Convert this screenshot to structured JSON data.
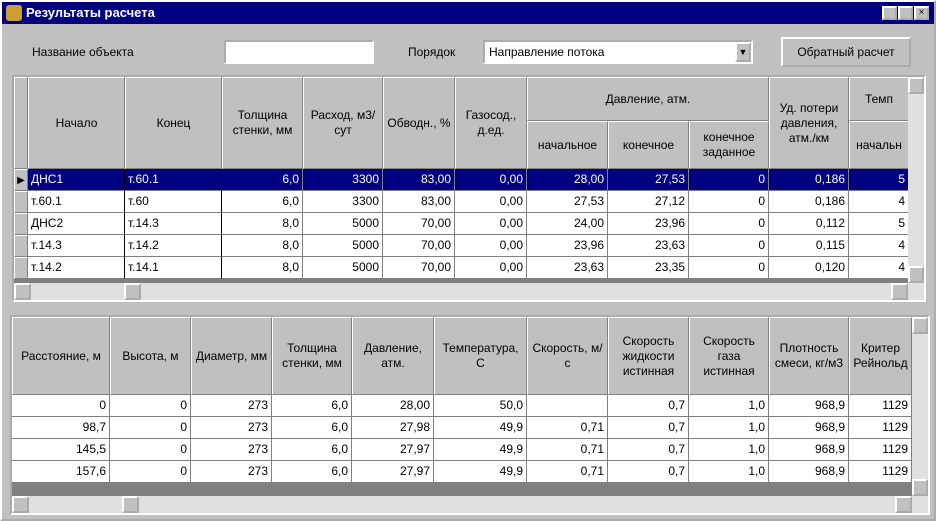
{
  "window": {
    "title": "Результаты расчета"
  },
  "toolbar": {
    "object_label": "Название объекта",
    "order_label": "Порядок",
    "order_value": "Направление потока",
    "button": "Обратный расчет"
  },
  "top_table": {
    "headers": [
      {
        "label": "Начало"
      },
      {
        "label": "Конец"
      },
      {
        "label": "Толщина стенки, мм"
      },
      {
        "label": "Расход, м3/сут"
      },
      {
        "label": "Обводн., %"
      },
      {
        "label": "Газосод., д.ед."
      },
      {
        "label": "Давление, атм.",
        "sub": [
          "начальное",
          "конечное",
          "конечное заданное"
        ]
      },
      {
        "label": "Уд. потери давления, атм./км"
      },
      {
        "label": "Темп",
        "sub": [
          "начальн"
        ]
      }
    ],
    "rows": [
      [
        "ДНС1",
        "т.60.1",
        "6,0",
        "3300",
        "83,00",
        "0,00",
        "28,00",
        "27,53",
        "0",
        "0,186",
        "5"
      ],
      [
        "т.60.1",
        "т.60",
        "6,0",
        "3300",
        "83,00",
        "0,00",
        "27,53",
        "27,12",
        "0",
        "0,186",
        "4"
      ],
      [
        "ДНС2",
        "т.14.3",
        "8,0",
        "5000",
        "70,00",
        "0,00",
        "24,00",
        "23,96",
        "0",
        "0,112",
        "5"
      ],
      [
        "т.14.3",
        "т.14.2",
        "8,0",
        "5000",
        "70,00",
        "0,00",
        "23,96",
        "23,63",
        "0",
        "0,115",
        "4"
      ],
      [
        "т.14.2",
        "т.14.1",
        "8,0",
        "5000",
        "70,00",
        "0,00",
        "23,63",
        "23,35",
        "0",
        "0,120",
        "4"
      ]
    ]
  },
  "bottom_table": {
    "headers": [
      {
        "label": "Расстояние, м"
      },
      {
        "label": "Высота, м"
      },
      {
        "label": "Диаметр, мм"
      },
      {
        "label": "Толщина стенки, мм"
      },
      {
        "label": "Давление, атм."
      },
      {
        "label": "Температура, С"
      },
      {
        "label": "Скорость, м/с"
      },
      {
        "label": "Скорость жидкости истинная"
      },
      {
        "label": "Скорость газа истинная"
      },
      {
        "label": "Плотность смеси, кг/м3"
      },
      {
        "label": "Критер Рейнольд"
      }
    ],
    "rows": [
      [
        "0",
        "0",
        "273",
        "6,0",
        "28,00",
        "50,0",
        null,
        "0,7",
        "1,0",
        "968,9",
        "1129"
      ],
      [
        "98,7",
        "0",
        "273",
        "6,0",
        "27,98",
        "49,9",
        "0,71",
        "0,7",
        "1,0",
        "968,9",
        "1129"
      ],
      [
        "145,5",
        "0",
        "273",
        "6,0",
        "27,97",
        "49,9",
        "0,71",
        "0,7",
        "1,0",
        "968,9",
        "1129"
      ],
      [
        "157,6",
        "0",
        "273",
        "6,0",
        "27,97",
        "49,9",
        "0,71",
        "0,7",
        "1,0",
        "968,9",
        "1129"
      ]
    ]
  }
}
